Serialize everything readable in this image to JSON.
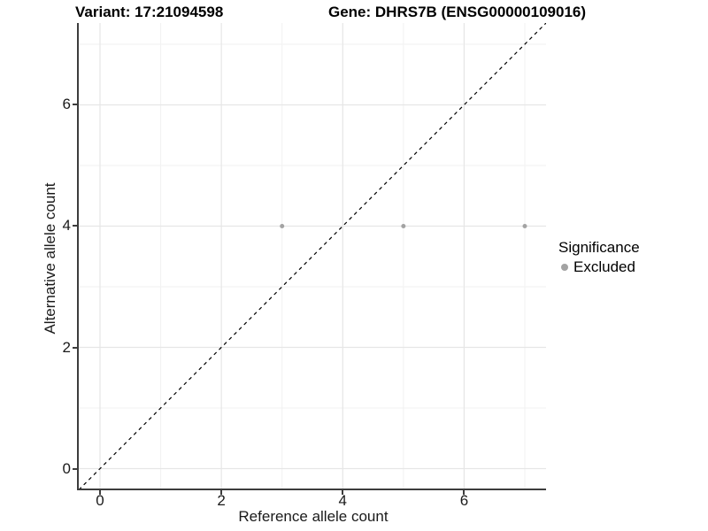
{
  "chart_data": {
    "type": "scatter",
    "title_left": "Variant: 17:21094598",
    "title_right": "Gene: DHRS7B (ENSG00000109016)",
    "xlabel": "Reference allele count",
    "ylabel": "Alternative allele count",
    "x_range": [
      -0.35,
      7.35
    ],
    "y_range": [
      -0.35,
      7.35
    ],
    "x_major_ticks": [
      0,
      2,
      4,
      6
    ],
    "y_major_ticks": [
      0,
      2,
      4,
      6
    ],
    "x_minor_gridlines": [
      1,
      3,
      5,
      7
    ],
    "y_minor_gridlines": [
      1,
      3,
      5,
      7
    ],
    "grid": true,
    "legend": {
      "title": "Significance",
      "position": "right",
      "items": [
        {
          "label": "Excluded",
          "color": "#a3a3a3"
        }
      ]
    },
    "series": [
      {
        "name": "Excluded",
        "color": "#a3a3a3",
        "point_radius": 2.5,
        "points": [
          [
            3,
            4
          ],
          [
            5,
            4
          ],
          [
            7,
            4
          ]
        ]
      }
    ],
    "identity_line": {
      "equation": "y = x",
      "style": "dashed",
      "color": "#000000"
    },
    "style": {
      "grid_major_color": "#e6e6e6",
      "grid_minor_color": "#f2f2f2",
      "axis_line_color": "#3d3d3d",
      "background": "#ffffff"
    }
  }
}
